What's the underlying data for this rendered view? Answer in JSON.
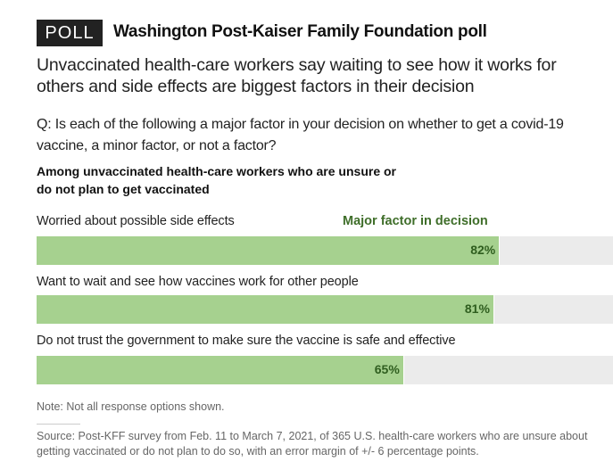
{
  "header": {
    "badge": "POLL",
    "kicker": "Washington Post-Kaiser Family Foundation poll",
    "headline": "Unvaccinated health-care workers say waiting to see how it works for others and side effects are biggest factors in their decision",
    "question": "Q: Is each of the following a major factor in your decision on whether to get a covid-19 vaccine, a minor factor, or not a factor?",
    "subhead": "Among unvaccinated health-care workers who are unsure or do not plan to get vaccinated"
  },
  "chart_data": {
    "type": "bar",
    "orientation": "horizontal",
    "categories": [
      "Worried about possible side effects",
      "Want to wait and see how vaccines work for other people",
      "Do not trust the government to make sure the vaccine is safe and effective"
    ],
    "series": [
      {
        "name": "Major factor in decision",
        "values": [
          82,
          81,
          65
        ],
        "color": "#a6d18f"
      }
    ],
    "value_labels": [
      "82%",
      "81%",
      "65%"
    ],
    "xlim": [
      0,
      100
    ],
    "grid": false,
    "legend_placement": "top-right",
    "track_color": "#ebebeb"
  },
  "footer": {
    "note": "Note: Not all response options shown.",
    "source": "Source: Post-KFF survey from Feb. 11 to March 7, 2021, of 365 U.S. health-care workers who are unsure about getting vaccinated or do not plan to do so, with an error margin of +/- 6 percentage points."
  }
}
